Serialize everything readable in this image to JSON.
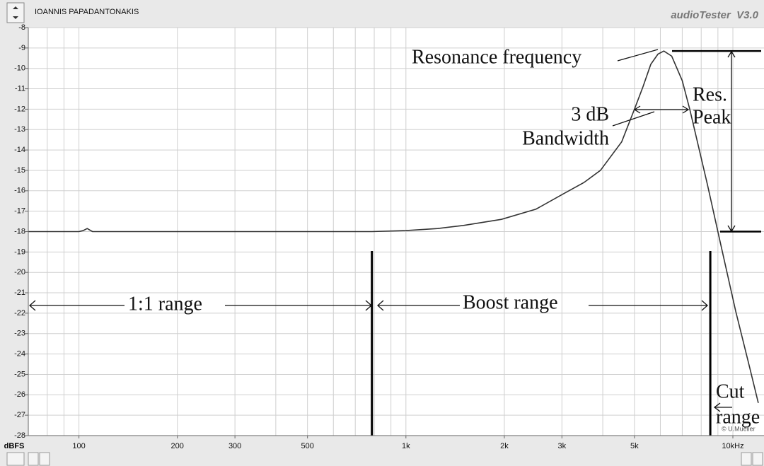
{
  "header": {
    "user": "IOANNIS PAPADANTONAKIS",
    "app": "audioTester  V3.0"
  },
  "chart_data": {
    "type": "line",
    "x": [
      70,
      100,
      103,
      106,
      110,
      200,
      500,
      787,
      1000,
      1250,
      1500,
      1960,
      2500,
      3070,
      3500,
      3935,
      4570,
      5000,
      5310,
      5610,
      5900,
      6150,
      6500,
      7000,
      7380,
      8360,
      9230,
      10200,
      11270,
      11960
    ],
    "series": [
      {
        "color": "#333333",
        "values": [
          -18,
          -18,
          -17.95,
          -17.85,
          -18,
          -18,
          -18,
          -18,
          -17.95,
          -17.85,
          -17.7,
          -17.4,
          -16.9,
          -16.1,
          -15.6,
          -15,
          -13.6,
          -12,
          -10.9,
          -9.8,
          -9.3,
          -9.15,
          -9.4,
          -10.6,
          -12,
          -15.7,
          -18.8,
          -21.9,
          -24.7,
          -26.4
        ]
      }
    ],
    "xlog": true,
    "xlim": [
      70,
      12450
    ],
    "xticks": [
      100,
      200,
      300,
      500,
      {
        "value": 1000,
        "label": "1k"
      },
      {
        "value": 2000,
        "label": "2k"
      },
      {
        "value": 3000,
        "label": "3k"
      },
      {
        "value": 5000,
        "label": "5k"
      },
      {
        "value": 10000,
        "label": "10kHz"
      }
    ],
    "xgrid": [
      80,
      90,
      100,
      200,
      300,
      400,
      500,
      600,
      700,
      800,
      900,
      1000,
      2000,
      3000,
      4000,
      5000,
      6000,
      7000,
      8000,
      9000,
      10000
    ],
    "ylim": [
      -28,
      -8
    ],
    "yticks": [
      -8,
      -9,
      -10,
      -11,
      -12,
      -13,
      -14,
      -15,
      -16,
      -17,
      -18,
      -19,
      -20,
      -21,
      -22,
      -23,
      -24,
      -25,
      -26,
      -27,
      -28
    ],
    "ylabel": "dBFS",
    "grid": true,
    "range_boundaries": [
      787,
      8530
    ],
    "annotations": {
      "resonance": "Resonance frequency",
      "db3": "3 dB",
      "bandwidth": "Bandwidth",
      "res": "Res.",
      "peak": "Peak",
      "range11": "1:1 range",
      "boost": "Boost range",
      "cut": "Cut",
      "cut2": "range",
      "copyright": "© U.Mueller"
    }
  }
}
